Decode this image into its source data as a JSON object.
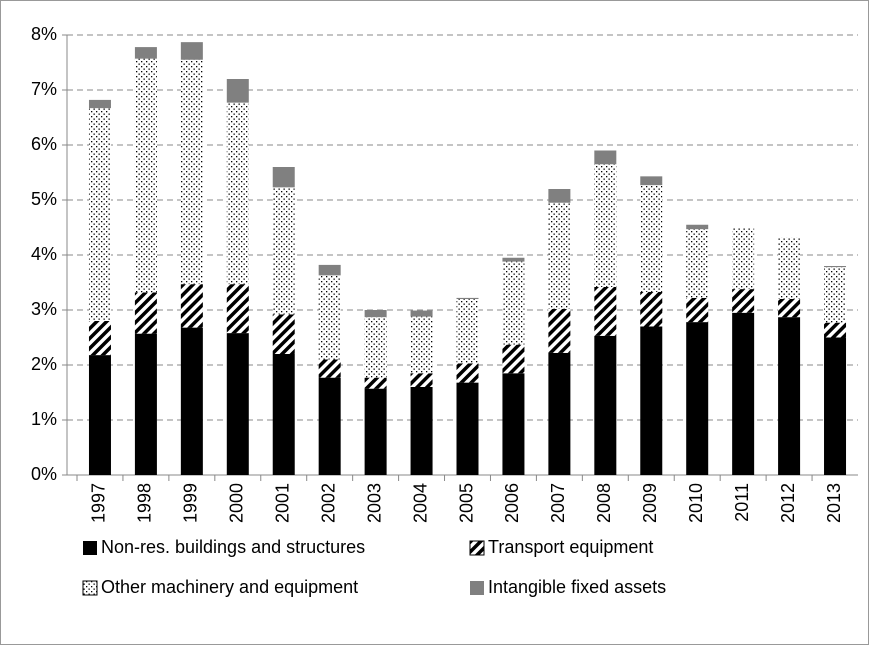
{
  "chart_data": {
    "type": "stacked_bar",
    "categories": [
      "1997",
      "1998",
      "1999",
      "2000",
      "2001",
      "2002",
      "2003",
      "2004",
      "2005",
      "2006",
      "2007",
      "2008",
      "2009",
      "2010",
      "2011",
      "2012",
      "2013"
    ],
    "series": [
      {
        "name": "Non-res. buildings and structures",
        "color": "#000000",
        "pattern": "solid",
        "values": [
          2.18,
          2.57,
          2.68,
          2.58,
          2.2,
          1.77,
          1.57,
          1.6,
          1.68,
          1.85,
          2.22,
          2.53,
          2.7,
          2.78,
          2.95,
          2.87,
          2.5
        ]
      },
      {
        "name": "Transport equipment",
        "color": "#000000",
        "pattern": "hatch",
        "values": [
          0.62,
          0.75,
          0.79,
          0.89,
          0.72,
          0.33,
          0.2,
          0.25,
          0.35,
          0.52,
          0.8,
          0.89,
          0.63,
          0.44,
          0.43,
          0.33,
          0.27
        ]
      },
      {
        "name": "Other machinery and equipment",
        "color": "#000000",
        "pattern": "dots",
        "values": [
          3.87,
          4.25,
          4.08,
          3.3,
          2.31,
          1.53,
          1.1,
          1.03,
          1.17,
          1.51,
          1.93,
          2.23,
          1.94,
          1.25,
          1.12,
          1.12,
          1.01
        ]
      },
      {
        "name": "Intangible fixed assets",
        "color": "#808080",
        "pattern": "solid",
        "values": [
          0.15,
          0.21,
          0.32,
          0.43,
          0.37,
          0.19,
          0.13,
          0.11,
          0.02,
          0.07,
          0.25,
          0.25,
          0.16,
          0.08,
          0,
          0,
          0.02
        ]
      }
    ],
    "ylim": [
      0,
      8
    ],
    "yticks": [
      {
        "value": 0,
        "label": "0%"
      },
      {
        "value": 1,
        "label": "1%"
      },
      {
        "value": 2,
        "label": "2%"
      },
      {
        "value": 3,
        "label": "3%"
      },
      {
        "value": 4,
        "label": "4%"
      },
      {
        "value": 5,
        "label": "5%"
      },
      {
        "value": 6,
        "label": "6%"
      },
      {
        "value": 7,
        "label": "7%"
      },
      {
        "value": 8,
        "label": "8%"
      }
    ],
    "grid": true,
    "legend": "bottom"
  }
}
